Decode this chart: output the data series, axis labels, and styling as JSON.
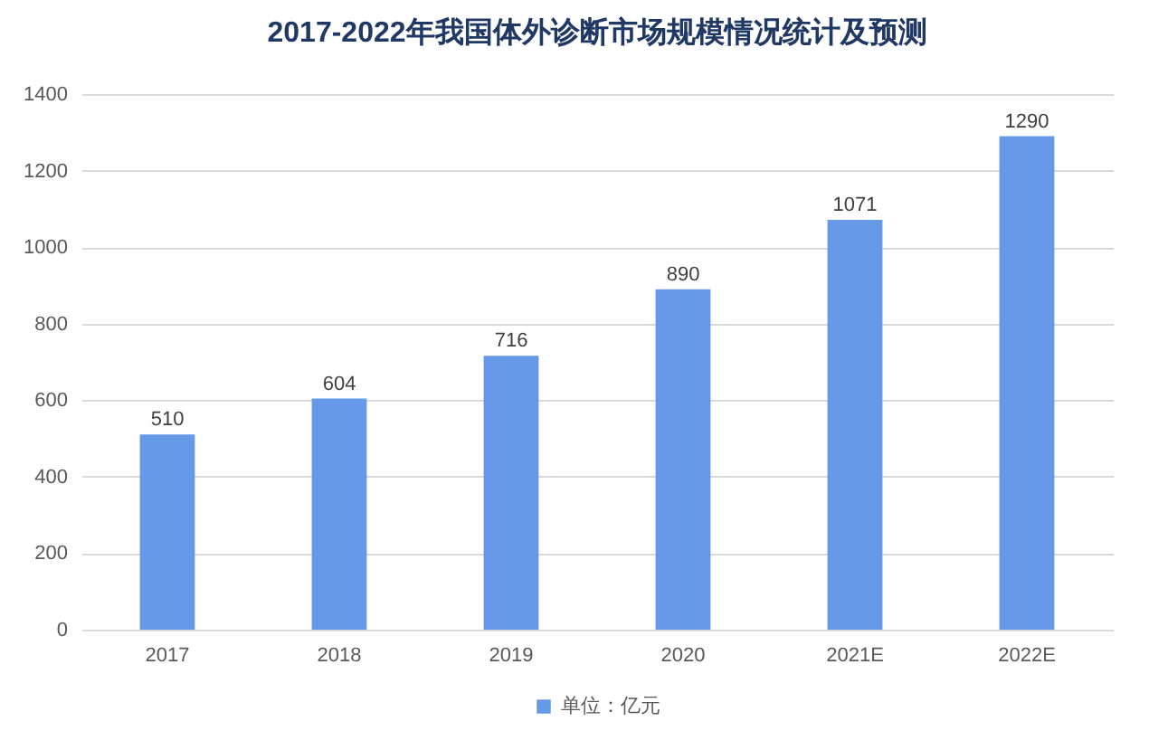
{
  "chart_data": {
    "type": "bar",
    "title": "2017-2022年我国体外诊断市场规模情况统计及预测",
    "categories": [
      "2017",
      "2018",
      "2019",
      "2020",
      "2021E",
      "2022E"
    ],
    "series": [
      {
        "name": "单位：亿元",
        "color": "#6699e8",
        "values": [
          510,
          604,
          716,
          890,
          1071,
          1290
        ]
      }
    ],
    "ylim": [
      0,
      1400
    ],
    "yticks": [
      0,
      200,
      400,
      600,
      800,
      1000,
      1200,
      1400
    ],
    "grid": "y",
    "legend": "bottom",
    "data_labels": true
  }
}
